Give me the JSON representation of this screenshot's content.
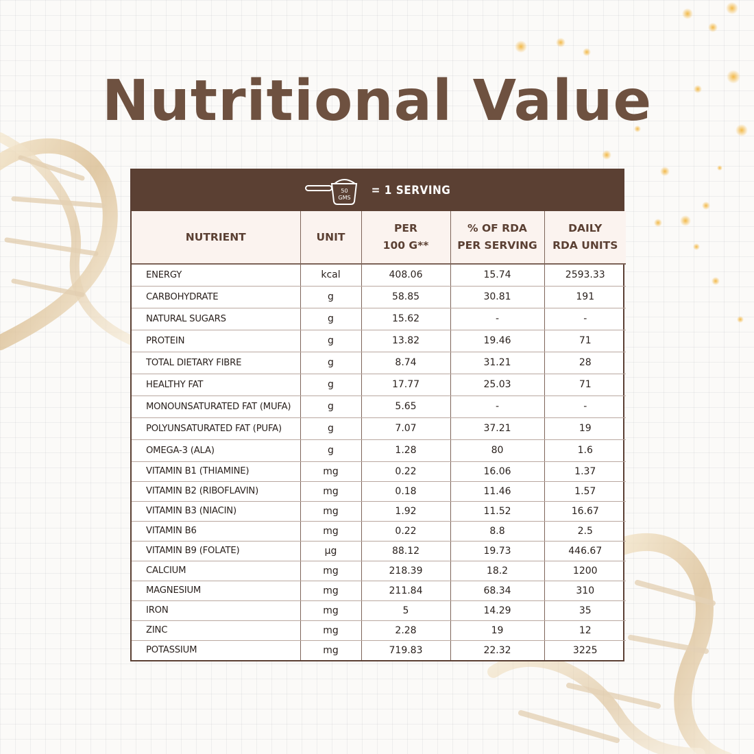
{
  "title": "Nutritional Value",
  "colors": {
    "brand": "#6e5140",
    "header_bar": "#5b4033",
    "text": "#2a211d",
    "accent_gold": "#d9a44a"
  },
  "serving": {
    "icon": "measuring-scoop-icon",
    "scoop_label": "50 GMS",
    "scoop_line1": "50",
    "scoop_line2": "GMS",
    "text": "= 1 SERVING"
  },
  "table": {
    "headers": {
      "nutrient": "NUTRIENT",
      "unit": "UNIT",
      "per100_l1": "PER",
      "per100_l2": "100 G**",
      "rda_l1": "% OF RDA",
      "rda_l2": "PER SERVING",
      "daily_l1": "DAILY",
      "daily_l2": "RDA UNITS"
    },
    "rows": [
      {
        "nutrient": "ENERGY",
        "unit": "kcal",
        "per100": "408.06",
        "rda_pct": "15.74",
        "daily": "2593.33"
      },
      {
        "nutrient": "CARBOHYDRATE",
        "unit": "g",
        "per100": "58.85",
        "rda_pct": "30.81",
        "daily": "191"
      },
      {
        "nutrient": "NATURAL SUGARS",
        "unit": "g",
        "per100": "15.62",
        "rda_pct": "-",
        "daily": "-"
      },
      {
        "nutrient": "PROTEIN",
        "unit": "g",
        "per100": "13.82",
        "rda_pct": "19.46",
        "daily": "71"
      },
      {
        "nutrient": "TOTAL DIETARY FIBRE",
        "unit": "g",
        "per100": "8.74",
        "rda_pct": "31.21",
        "daily": "28"
      },
      {
        "nutrient": "HEALTHY FAT",
        "unit": "g",
        "per100": "17.77",
        "rda_pct": "25.03",
        "daily": "71"
      },
      {
        "nutrient": "MONOUNSATURATED FAT (MUFA)",
        "unit": "g",
        "per100": "5.65",
        "rda_pct": "-",
        "daily": "-"
      },
      {
        "nutrient": "POLYUNSATURATED FAT (PUFA)",
        "unit": "g",
        "per100": "7.07",
        "rda_pct": "37.21",
        "daily": "19"
      },
      {
        "nutrient": "OMEGA-3 (ALA)",
        "unit": "g",
        "per100": "1.28",
        "rda_pct": "80",
        "daily": "1.6"
      },
      {
        "nutrient": "VITAMIN B1 (THIAMINE)",
        "unit": "mg",
        "per100": "0.22",
        "rda_pct": "16.06",
        "daily": "1.37"
      },
      {
        "nutrient": "VITAMIN B2 (RIBOFLAVIN)",
        "unit": "mg",
        "per100": "0.18",
        "rda_pct": "11.46",
        "daily": "1.57"
      },
      {
        "nutrient": "VITAMIN B3 (NIACIN)",
        "unit": "mg",
        "per100": "1.92",
        "rda_pct": "11.52",
        "daily": "16.67"
      },
      {
        "nutrient": "VITAMIN B6",
        "unit": "mg",
        "per100": "0.22",
        "rda_pct": "8.8",
        "daily": "2.5"
      },
      {
        "nutrient": "VITAMIN B9 (FOLATE)",
        "unit": "µg",
        "per100": "88.12",
        "rda_pct": "19.73",
        "daily": "446.67"
      },
      {
        "nutrient": "CALCIUM",
        "unit": "mg",
        "per100": "218.39",
        "rda_pct": "18.2",
        "daily": "1200"
      },
      {
        "nutrient": "MAGNESIUM",
        "unit": "mg",
        "per100": "211.84",
        "rda_pct": "68.34",
        "daily": "310"
      },
      {
        "nutrient": "IRON",
        "unit": "mg",
        "per100": "5",
        "rda_pct": "14.29",
        "daily": "35"
      },
      {
        "nutrient": "ZINC",
        "unit": "mg",
        "per100": "2.28",
        "rda_pct": "19",
        "daily": "12"
      },
      {
        "nutrient": "POTASSIUM",
        "unit": "mg",
        "per100": "719.83",
        "rda_pct": "22.32",
        "daily": "3225"
      }
    ]
  }
}
